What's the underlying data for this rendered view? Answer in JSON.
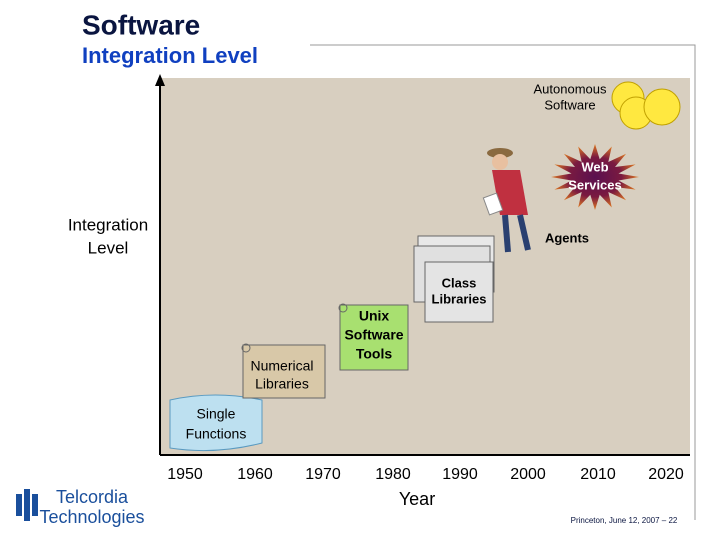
{
  "header": {
    "title": "Software",
    "subtitle": "Integration Level"
  },
  "axes": {
    "y_label": [
      "Integration",
      "Level"
    ],
    "x_label": "Year",
    "x_ticks": [
      "1950",
      "1960",
      "1970",
      "1980",
      "1990",
      "2000",
      "2010",
      "2020"
    ]
  },
  "stages": {
    "single_functions": [
      "Single",
      "Functions"
    ],
    "numerical_libraries": [
      "Numerical",
      "Libraries"
    ],
    "unix_tools": [
      "Unix",
      "Software",
      "Tools"
    ],
    "class_libraries": [
      "Class",
      "Libraries"
    ],
    "agents": "Agents",
    "web_services": [
      "Web",
      "Services"
    ],
    "autonomous_software": [
      "Autonomous",
      "Software"
    ]
  },
  "footer": {
    "logo": [
      "Telcordia",
      "Technologies"
    ],
    "note": "Princeton, June 12, 2007 – 22"
  }
}
